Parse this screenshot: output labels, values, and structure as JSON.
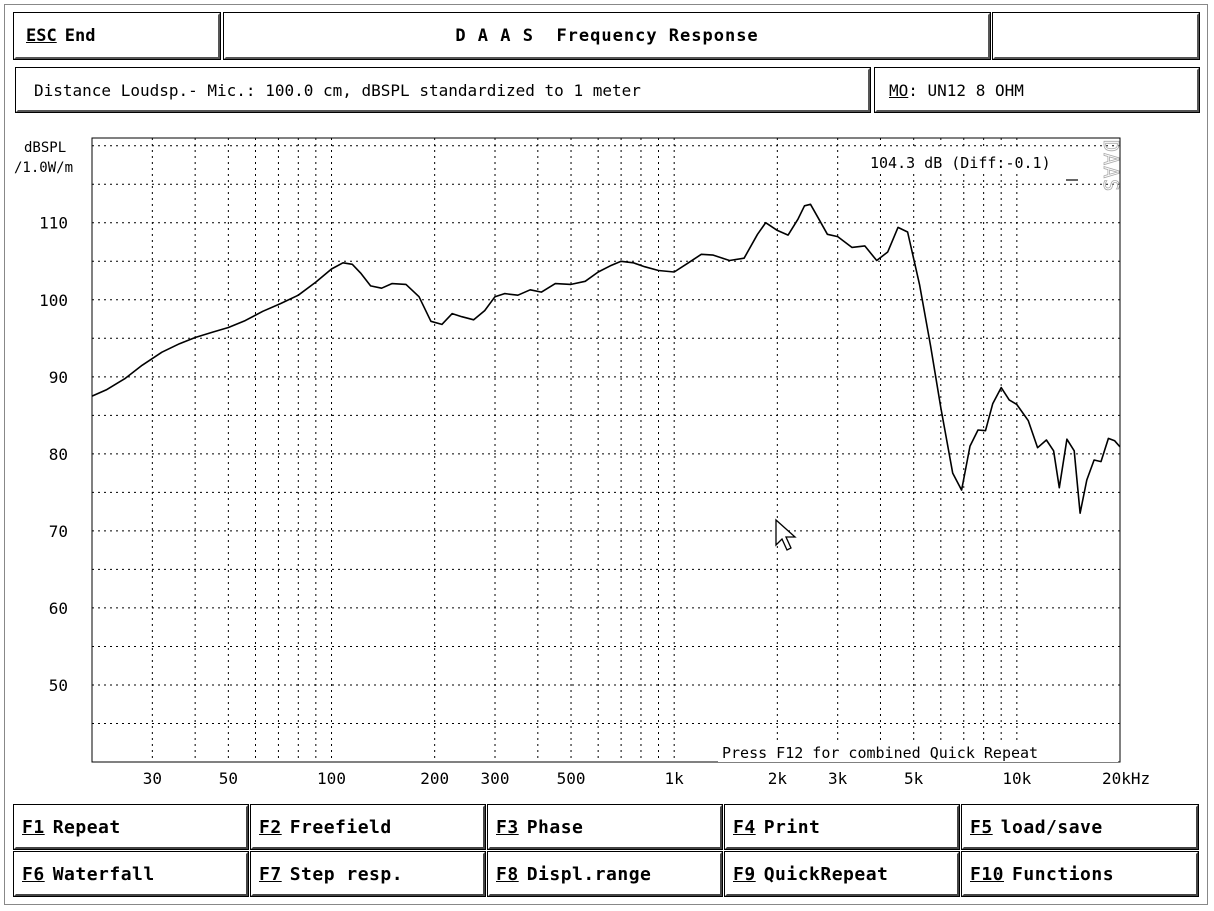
{
  "header": {
    "esc_key": "ESC",
    "esc_label": "End",
    "title": "D A A S  Frequency Response",
    "right_box": ""
  },
  "info": {
    "distance": "Distance Loudsp.- Mic.: 100.0 cm, dBSPL standardized to 1 meter",
    "mo_key": "MO",
    "mo_value": ": UN12 8 OHM"
  },
  "chart_data": {
    "type": "line",
    "ylabel": "dBSPL\n/1.0W/m",
    "ylabel_line1": "dBSPL",
    "ylabel_line2": "/1.0W/m",
    "xlabel": "20kHz",
    "x_scale": "log",
    "xlim": [
      20,
      20000
    ],
    "ylim": [
      40,
      121
    ],
    "grid": true,
    "y_ticks": [
      50,
      60,
      70,
      80,
      90,
      100,
      110
    ],
    "x_ticks": [
      {
        "value": 30,
        "label": "30"
      },
      {
        "value": 50,
        "label": "50"
      },
      {
        "value": 100,
        "label": "100"
      },
      {
        "value": 200,
        "label": "200"
      },
      {
        "value": 300,
        "label": "300"
      },
      {
        "value": 500,
        "label": "500"
      },
      {
        "value": 1000,
        "label": "1k"
      },
      {
        "value": 2000,
        "label": "2k"
      },
      {
        "value": 3000,
        "label": "3k"
      },
      {
        "value": 5000,
        "label": "5k"
      },
      {
        "value": 10000,
        "label": "10k"
      },
      {
        "value": 20000,
        "label": "20kHz"
      }
    ],
    "readout": "104.3 dB (Diff:-0.1)",
    "side_label": "DAAS",
    "footer_note": "Press F12 for combined Quick Repeat",
    "series": [
      {
        "x": [
          20,
          22,
          25,
          28,
          32,
          36,
          40,
          45,
          50,
          56,
          63,
          71,
          80,
          90,
          100,
          108,
          115,
          122,
          130,
          140,
          150,
          165,
          180,
          195,
          210,
          225,
          240,
          260,
          280,
          300,
          320,
          350,
          380,
          410,
          450,
          500,
          550,
          600,
          650,
          700,
          760,
          820,
          900,
          1000,
          1100,
          1200,
          1300,
          1450,
          1600,
          1750,
          1850,
          2000,
          2150,
          2300,
          2400,
          2500,
          2650,
          2800,
          3000,
          3300,
          3600,
          3900,
          4200,
          4500,
          4800,
          5200,
          5600,
          6000,
          6500,
          6900,
          7300,
          7700,
          8100,
          8500,
          9000,
          9500,
          10000,
          10800,
          11500,
          12200,
          12800,
          13300,
          14000,
          14700,
          15300,
          16000,
          16800,
          17600,
          18500,
          19300,
          20000
        ],
        "y": [
          87.5,
          88.3,
          89.8,
          91.5,
          93.2,
          94.3,
          95.1,
          95.8,
          96.4,
          97.3,
          98.5,
          99.5,
          100.6,
          102.3,
          104.0,
          104.8,
          104.6,
          103.4,
          101.8,
          101.5,
          102.1,
          102.0,
          100.4,
          97.2,
          96.8,
          98.2,
          97.8,
          97.4,
          98.6,
          100.4,
          100.8,
          100.6,
          101.3,
          101.0,
          102.1,
          102.0,
          102.4,
          103.6,
          104.4,
          105.0,
          104.8,
          104.3,
          103.8,
          103.6,
          104.8,
          105.9,
          105.8,
          105.1,
          105.4,
          108.5,
          110.0,
          109.0,
          108.4,
          110.5,
          112.2,
          112.4,
          110.4,
          108.5,
          108.2,
          106.8,
          107.0,
          105.1,
          106.2,
          109.4,
          108.8,
          102.0,
          94.0,
          86.0,
          77.5,
          75.3,
          81.0,
          83.1,
          83.0,
          86.5,
          88.6,
          87.0,
          86.4,
          84.3,
          80.8,
          81.8,
          80.4,
          75.6,
          81.9,
          80.4,
          72.3,
          76.6,
          79.2,
          79.0,
          82.0,
          81.7,
          80.9
        ]
      }
    ]
  },
  "cursor": {
    "label": "mouse-cursor"
  },
  "function_keys": [
    {
      "key": "F1",
      "label": "Repeat"
    },
    {
      "key": "F2",
      "label": "Freefield"
    },
    {
      "key": "F3",
      "label": "Phase"
    },
    {
      "key": "F4",
      "label": "Print"
    },
    {
      "key": "F5",
      "label": "load/save"
    },
    {
      "key": "F6",
      "label": "Waterfall"
    },
    {
      "key": "F7",
      "label": "Step resp."
    },
    {
      "key": "F8",
      "label": "Displ.range"
    },
    {
      "key": "F9",
      "label": "QuickRepeat"
    },
    {
      "key": "F10",
      "label": "Functions"
    }
  ]
}
